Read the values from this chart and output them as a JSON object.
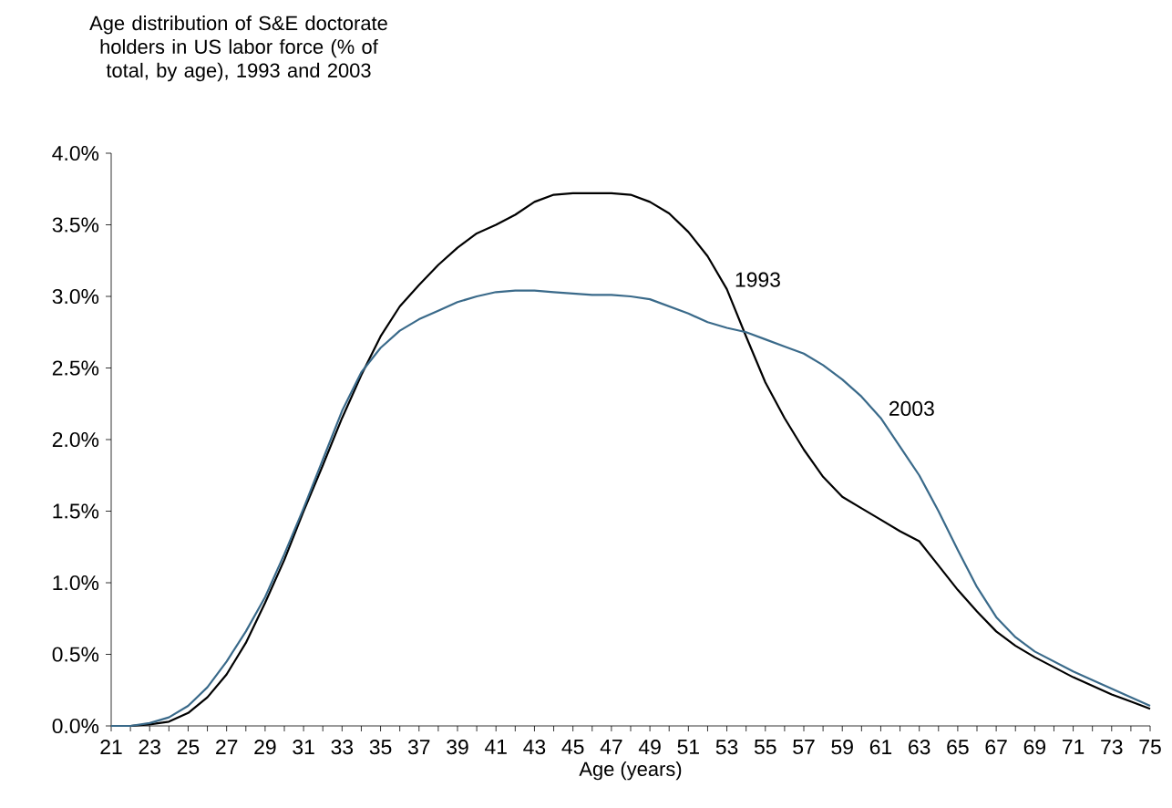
{
  "chart_data": {
    "type": "line",
    "title": "Age distribution of S&E doctorate holders in US labor force (% of total, by age), 1993 and 2003",
    "xlabel": "Age (years)",
    "x": [
      21,
      22,
      23,
      24,
      25,
      26,
      27,
      28,
      29,
      30,
      31,
      32,
      33,
      34,
      35,
      36,
      37,
      38,
      39,
      40,
      41,
      42,
      43,
      44,
      45,
      46,
      47,
      48,
      49,
      50,
      51,
      52,
      53,
      54,
      55,
      56,
      57,
      58,
      59,
      60,
      61,
      62,
      63,
      64,
      65,
      66,
      67,
      68,
      69,
      70,
      71,
      72,
      73,
      74,
      75
    ],
    "series": [
      {
        "color": "#000000",
        "values": [
          0,
          0,
          0.01,
          0.03,
          0.09,
          0.2,
          0.36,
          0.58,
          0.86,
          1.16,
          1.5,
          1.82,
          2.15,
          2.45,
          2.72,
          2.93,
          3.08,
          3.22,
          3.34,
          3.44,
          3.5,
          3.57,
          3.66,
          3.71,
          3.72,
          3.72,
          3.72,
          3.71,
          3.66,
          3.58,
          3.45,
          3.28,
          3.05,
          2.72,
          2.4,
          2.15,
          1.93,
          1.74,
          1.6,
          1.52,
          1.44,
          1.36,
          1.29,
          1.12,
          0.95,
          0.8,
          0.66,
          0.56,
          0.48,
          0.41,
          0.34,
          0.28,
          0.22,
          0.17,
          0.12
        ]
      },
      {
        "color": "#3a6a8a",
        "values": [
          0,
          0,
          0.02,
          0.06,
          0.14,
          0.27,
          0.45,
          0.66,
          0.9,
          1.2,
          1.52,
          1.86,
          2.2,
          2.47,
          2.64,
          2.76,
          2.84,
          2.9,
          2.96,
          3.0,
          3.03,
          3.04,
          3.04,
          3.03,
          3.02,
          3.01,
          3.01,
          3.0,
          2.98,
          2.93,
          2.88,
          2.82,
          2.78,
          2.75,
          2.7,
          2.65,
          2.6,
          2.52,
          2.42,
          2.3,
          2.15,
          1.95,
          1.75,
          1.5,
          1.23,
          0.97,
          0.76,
          0.62,
          0.52,
          0.45,
          0.38,
          0.32,
          0.26,
          0.2,
          0.14
        ]
      }
    ],
    "annotations": [
      {
        "text": "1993",
        "x": 53,
        "y": 3.05
      },
      {
        "text": "2003",
        "x": 61,
        "y": 2.15
      }
    ],
    "xlim": [
      21,
      75
    ],
    "xticks": [
      21,
      {
        "value": 22,
        "label": null
      },
      23,
      {
        "value": 24,
        "label": null
      },
      25,
      {
        "value": 26,
        "label": null
      },
      27,
      {
        "value": 28,
        "label": null
      },
      29,
      {
        "value": 30,
        "label": null
      },
      31,
      {
        "value": 32,
        "label": null
      },
      33,
      {
        "value": 34,
        "label": null
      },
      35,
      {
        "value": 36,
        "label": null
      },
      37,
      {
        "value": 38,
        "label": null
      },
      39,
      {
        "value": 40,
        "label": null
      },
      41,
      {
        "value": 42,
        "label": null
      },
      43,
      {
        "value": 44,
        "label": null
      },
      45,
      {
        "value": 46,
        "label": null
      },
      47,
      {
        "value": 48,
        "label": null
      },
      49,
      {
        "value": 50,
        "label": null
      },
      51,
      {
        "value": 52,
        "label": null
      },
      53,
      {
        "value": 54,
        "label": null
      },
      55,
      {
        "value": 56,
        "label": null
      },
      57,
      {
        "value": 58,
        "label": null
      },
      59,
      {
        "value": 60,
        "label": null
      },
      61,
      {
        "value": 62,
        "label": null
      },
      63,
      {
        "value": 64,
        "label": null
      },
      65,
      {
        "value": 66,
        "label": null
      },
      67,
      {
        "value": 68,
        "label": null
      },
      69,
      {
        "value": 70,
        "label": null
      },
      71,
      {
        "value": 72,
        "label": null
      },
      73,
      {
        "value": 74,
        "label": null
      },
      75
    ],
    "ylim": [
      0,
      4
    ],
    "yticks": [
      {
        "value": 0,
        "label": "0.0%"
      },
      {
        "value": 0.5,
        "label": "0.5%"
      },
      {
        "value": 1,
        "label": "1.0%"
      },
      {
        "value": 1.5,
        "label": "1.5%"
      },
      {
        "value": 2,
        "label": "2.0%"
      },
      {
        "value": 2.5,
        "label": "2.5%"
      },
      {
        "value": 3,
        "label": "3.0%"
      },
      {
        "value": 3.5,
        "label": "3.5%"
      },
      {
        "value": 4,
        "label": "4.0%"
      }
    ],
    "marker": "none",
    "line_style": "solid"
  }
}
